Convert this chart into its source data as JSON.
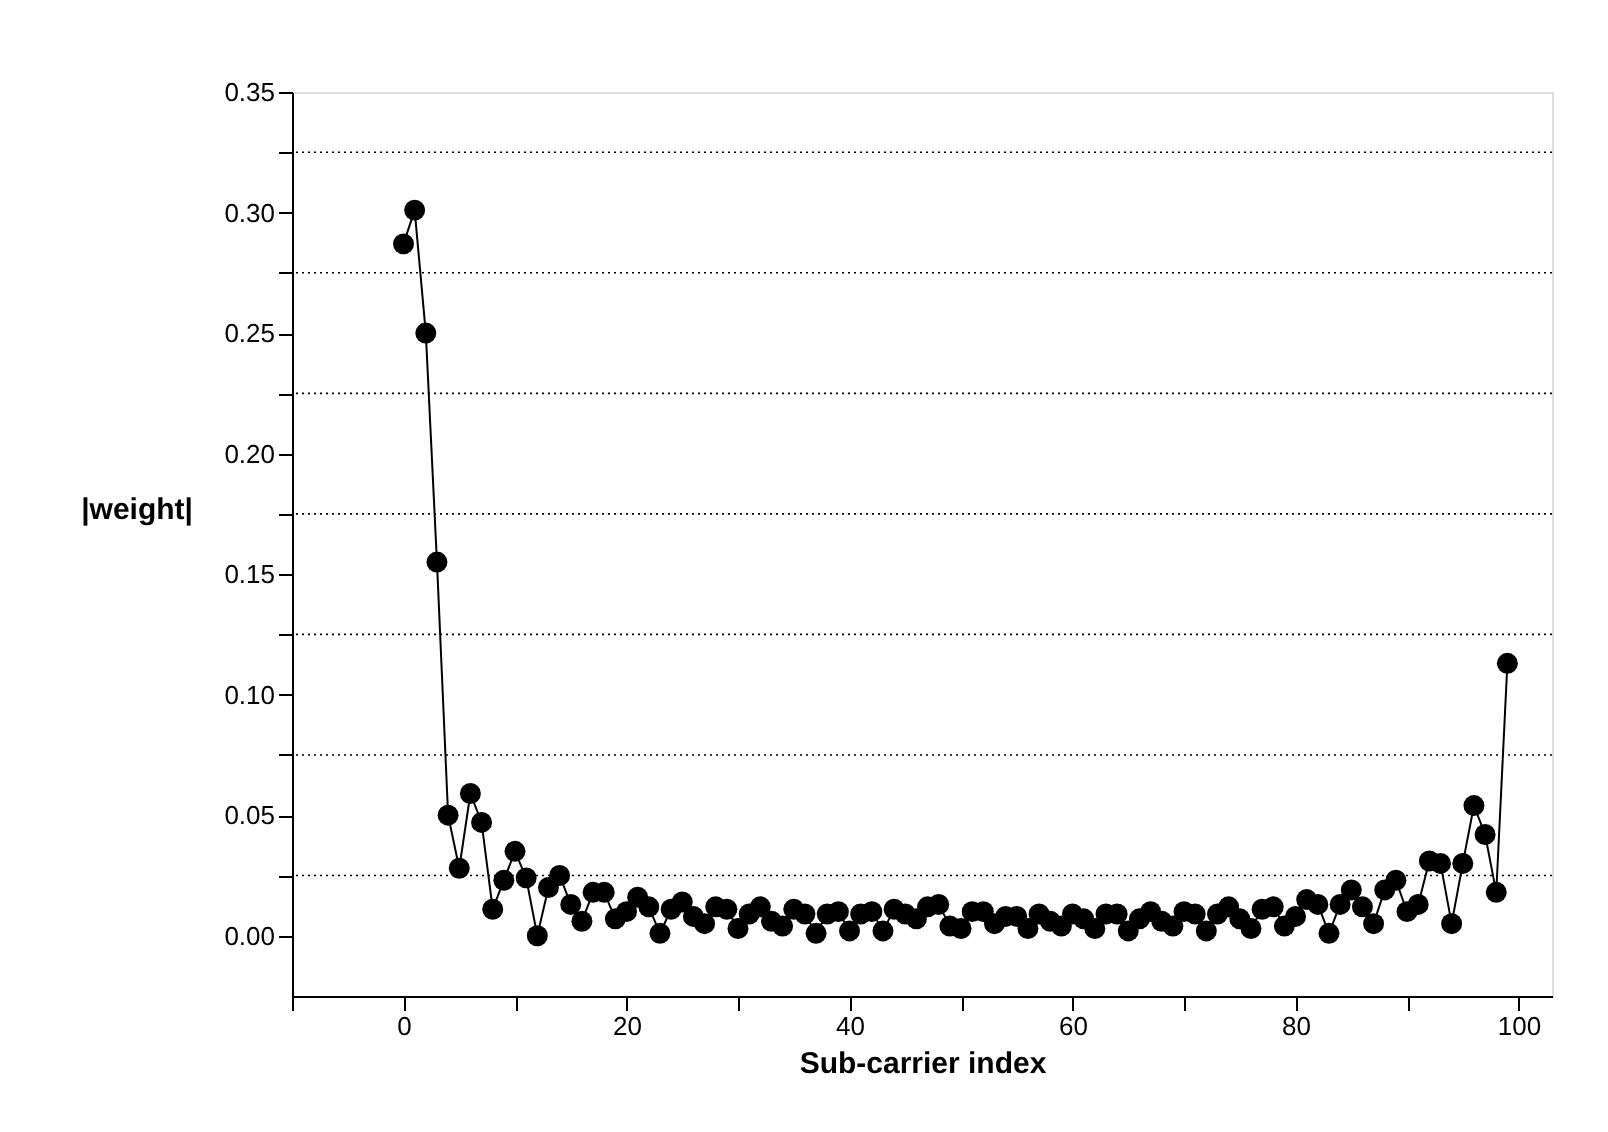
{
  "chart_data": {
    "type": "line",
    "xlabel": "Sub-carrier index",
    "ylabel": "|weight|",
    "x": [
      0,
      1,
      2,
      3,
      4,
      5,
      6,
      7,
      8,
      9,
      10,
      11,
      12,
      13,
      14,
      15,
      16,
      17,
      18,
      19,
      20,
      21,
      22,
      23,
      24,
      25,
      26,
      27,
      28,
      29,
      30,
      31,
      32,
      33,
      34,
      35,
      36,
      37,
      38,
      39,
      40,
      41,
      42,
      43,
      44,
      45,
      46,
      47,
      48,
      49,
      50,
      51,
      52,
      53,
      54,
      55,
      56,
      57,
      58,
      59,
      60,
      61,
      62,
      63,
      64,
      65,
      66,
      67,
      68,
      69,
      70,
      71,
      72,
      73,
      74,
      75,
      76,
      77,
      78,
      79,
      80,
      81,
      82,
      83,
      84,
      85,
      86,
      87,
      88,
      89,
      90,
      91,
      92,
      93,
      94,
      95,
      96,
      97,
      98,
      99
    ],
    "series": [
      {
        "color": "#000000",
        "values": [
          0.287,
          0.301,
          0.25,
          0.155,
          0.05,
          0.028,
          0.059,
          0.047,
          0.011,
          0.023,
          0.035,
          0.024,
          0.0,
          0.02,
          0.025,
          0.013,
          0.006,
          0.018,
          0.018,
          0.007,
          0.01,
          0.016,
          0.012,
          0.001,
          0.011,
          0.014,
          0.008,
          0.005,
          0.012,
          0.011,
          0.003,
          0.009,
          0.012,
          0.006,
          0.004,
          0.011,
          0.009,
          0.001,
          0.009,
          0.01,
          0.002,
          0.009,
          0.01,
          0.002,
          0.011,
          0.009,
          0.007,
          0.012,
          0.013,
          0.004,
          0.003,
          0.01,
          0.01,
          0.005,
          0.008,
          0.008,
          0.003,
          0.009,
          0.006,
          0.004,
          0.009,
          0.007,
          0.003,
          0.009,
          0.009,
          0.002,
          0.007,
          0.01,
          0.006,
          0.004,
          0.01,
          0.009,
          0.002,
          0.009,
          0.012,
          0.007,
          0.003,
          0.011,
          0.012,
          0.004,
          0.008,
          0.015,
          0.013,
          0.001,
          0.013,
          0.019,
          0.012,
          0.005,
          0.019,
          0.023,
          0.01,
          0.013,
          0.031,
          0.03,
          0.005,
          0.03,
          0.054,
          0.042,
          0.018,
          0.113
        ]
      }
    ],
    "xlim": [
      -10,
      103
    ],
    "xticks": [
      {
        "value": -10,
        "label": null
      },
      0,
      {
        "value": 10,
        "label": null
      },
      20,
      {
        "value": 30,
        "label": null
      },
      40,
      {
        "value": 50,
        "label": null
      },
      60,
      {
        "value": 70,
        "label": null
      },
      80,
      {
        "value": 90,
        "label": null
      },
      100
    ],
    "ylim": [
      -0.025,
      0.35
    ],
    "yticks": [
      {
        "value": 0,
        "label": "0.00"
      },
      {
        "value": 0.025,
        "label": null
      },
      {
        "value": 0.05,
        "label": "0.05"
      },
      {
        "value": 0.075,
        "label": null
      },
      {
        "value": 0.1,
        "label": "0.10"
      },
      {
        "value": 0.125,
        "label": null
      },
      {
        "value": 0.15,
        "label": "0.15"
      },
      {
        "value": 0.175,
        "label": null
      },
      {
        "value": 0.2,
        "label": "0.20"
      },
      {
        "value": 0.225,
        "label": null
      },
      {
        "value": 0.25,
        "label": "0.25"
      },
      {
        "value": 0.275,
        "label": null
      },
      {
        "value": 0.3,
        "label": "0.30"
      },
      {
        "value": 0.325,
        "label": null
      },
      {
        "value": 0.35,
        "label": "0.35"
      }
    ],
    "grid": "y",
    "marker": "circle",
    "line_style": "solid"
  }
}
